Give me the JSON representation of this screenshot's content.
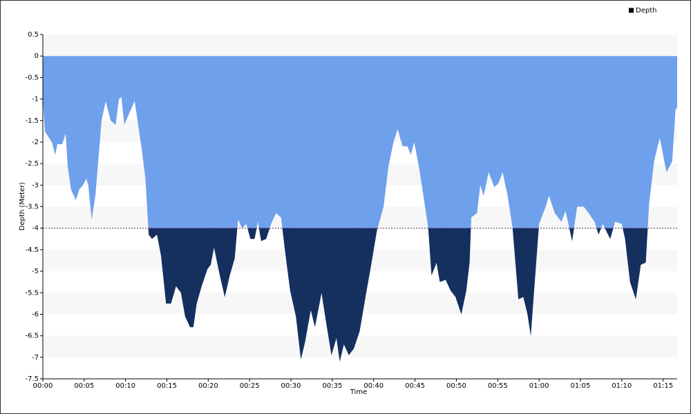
{
  "chart_data": {
    "type": "area",
    "x_label": "Time",
    "y_label": "Depth (Meter)",
    "series": [
      {
        "name": "Depth",
        "color": "#6fa0ec",
        "below_color": "#15305e",
        "legend_color": "#000000",
        "x": [
          0,
          0.25,
          1.09,
          1.5,
          1.75,
          2.34,
          2.76,
          3.0,
          3.4,
          4.0,
          4.4,
          4.85,
          5.26,
          5.5,
          5.9,
          6.35,
          7.1,
          7.6,
          8.2,
          8.8,
          9.2,
          9.5,
          9.85,
          10.4,
          11.1,
          11.95,
          12.4,
          12.8,
          13.2,
          13.8,
          14.3,
          14.9,
          15.5,
          16.1,
          16.7,
          17.2,
          17.8,
          18.2,
          18.6,
          19.2,
          19.9,
          20.3,
          20.7,
          21.4,
          22.0,
          22.6,
          23.2,
          23.6,
          24.1,
          24.6,
          25.1,
          25.6,
          26.0,
          26.4,
          27.0,
          27.6,
          28.2,
          28.8,
          29.3,
          29.9,
          30.6,
          31.2,
          31.7,
          32.4,
          32.9,
          33.7,
          34.3,
          34.9,
          35.5,
          35.9,
          36.4,
          37.0,
          37.6,
          38.3,
          39.1,
          39.7,
          40.4,
          41.2,
          41.8,
          42.4,
          42.9,
          43.5,
          44.1,
          44.5,
          44.9,
          45.5,
          45.9,
          46.6,
          47.0,
          47.6,
          48.0,
          48.7,
          49.3,
          49.9,
          50.6,
          51.2,
          51.6,
          51.8,
          52.5,
          52.9,
          53.3,
          53.9,
          54.6,
          55.1,
          55.6,
          56.2,
          56.8,
          57.5,
          58.1,
          58.6,
          59.0,
          59.4,
          60.0,
          60.8,
          61.2,
          61.9,
          62.7,
          63.2,
          64.0,
          64.6,
          65.4,
          66.0,
          66.7,
          67.2,
          67.7,
          68.6,
          69.2,
          70.0,
          70.4,
          71.0,
          71.7,
          72.3,
          72.9,
          73.3,
          73.9,
          74.6,
          75.4,
          76.1,
          76.5,
          76.7
        ],
        "values": [
          -1.0,
          -1.75,
          -2.0,
          -2.3,
          -2.05,
          -2.05,
          -1.8,
          -2.55,
          -3.1,
          -3.35,
          -3.1,
          -3.0,
          -2.85,
          -3.0,
          -3.8,
          -3.25,
          -1.5,
          -1.05,
          -1.5,
          -1.6,
          -1.0,
          -0.95,
          -1.6,
          -1.35,
          -1.05,
          -2.15,
          -2.85,
          -4.15,
          -4.25,
          -4.15,
          -4.65,
          -5.75,
          -5.75,
          -5.35,
          -5.5,
          -6.05,
          -6.3,
          -6.3,
          -5.75,
          -5.35,
          -4.95,
          -4.85,
          -4.45,
          -5.1,
          -5.6,
          -5.1,
          -4.7,
          -3.8,
          -4.0,
          -3.9,
          -4.25,
          -4.25,
          -3.85,
          -4.3,
          -4.25,
          -3.9,
          -3.65,
          -3.75,
          -4.55,
          -5.45,
          -6.05,
          -7.05,
          -6.65,
          -5.9,
          -6.3,
          -5.5,
          -6.25,
          -6.95,
          -6.55,
          -7.1,
          -6.7,
          -6.95,
          -6.8,
          -6.4,
          -5.5,
          -4.85,
          -4.05,
          -3.5,
          -2.55,
          -2.0,
          -1.7,
          -2.1,
          -2.1,
          -2.3,
          -2.0,
          -2.6,
          -3.1,
          -4.0,
          -5.1,
          -4.8,
          -5.25,
          -5.2,
          -5.45,
          -5.6,
          -6.0,
          -5.45,
          -4.8,
          -3.75,
          -3.65,
          -3.0,
          -3.25,
          -2.7,
          -3.05,
          -2.95,
          -2.7,
          -3.25,
          -4.0,
          -5.65,
          -5.6,
          -6.0,
          -6.5,
          -5.45,
          -3.9,
          -3.5,
          -3.25,
          -3.65,
          -3.85,
          -3.6,
          -4.3,
          -3.5,
          -3.5,
          -3.65,
          -3.85,
          -4.15,
          -3.9,
          -4.25,
          -3.85,
          -3.9,
          -4.25,
          -5.25,
          -5.65,
          -4.85,
          -4.8,
          -3.45,
          -2.45,
          -1.9,
          -2.7,
          -2.45,
          -1.25,
          -1.2
        ]
      }
    ],
    "threshold": -4,
    "xlim": [
      0,
      76.7
    ],
    "xticks": [
      {
        "value": 0,
        "label": "00:00"
      },
      {
        "value": 5,
        "label": "00:05"
      },
      {
        "value": 10,
        "label": "00:10"
      },
      {
        "value": 15,
        "label": "00:15"
      },
      {
        "value": 20,
        "label": "00:20"
      },
      {
        "value": 25,
        "label": "00:25"
      },
      {
        "value": 30,
        "label": "00:30"
      },
      {
        "value": 35,
        "label": "00:35"
      },
      {
        "value": 40,
        "label": "00:40"
      },
      {
        "value": 45,
        "label": "00:45"
      },
      {
        "value": 50,
        "label": "00:50"
      },
      {
        "value": 55,
        "label": "00:55"
      },
      {
        "value": 60,
        "label": "01:00"
      },
      {
        "value": 65,
        "label": "01:05"
      },
      {
        "value": 70,
        "label": "01:10"
      },
      {
        "value": 75,
        "label": "01:15"
      }
    ],
    "ylim": [
      -7.5,
      0.5
    ],
    "yticks": [
      0.5,
      0,
      -0.5,
      -1,
      -1.5,
      -2,
      -2.5,
      -3,
      -3.5,
      -4,
      -4.5,
      -5,
      -5.5,
      -6,
      -6.5,
      -7,
      -7.5
    ],
    "bands": true,
    "legend": "top-right"
  }
}
